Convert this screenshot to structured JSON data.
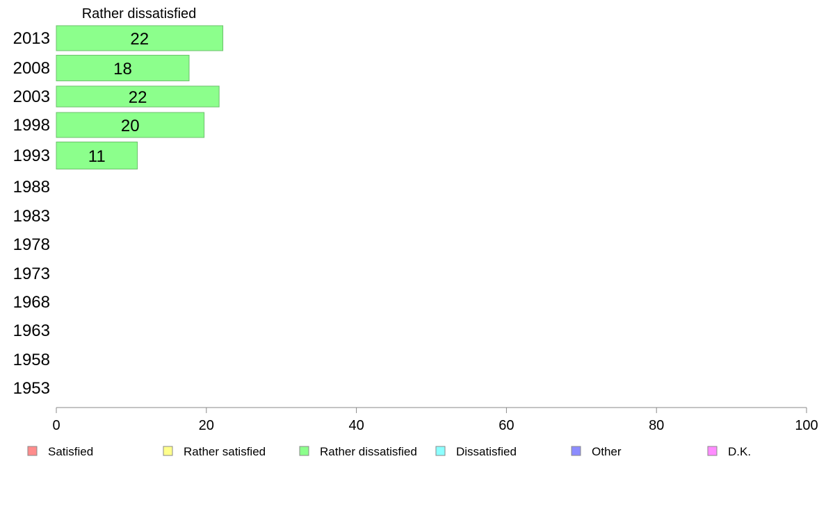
{
  "chart_data": {
    "type": "bar",
    "orientation": "horizontal",
    "title": "Rather dissatisfied",
    "categories": [
      "2013",
      "2008",
      "2003",
      "1998",
      "1993",
      "1988",
      "1983",
      "1978",
      "1973",
      "1968",
      "1963",
      "1958",
      "1953"
    ],
    "series": [
      {
        "name": "Rather dissatisfied",
        "color": "#8cff8c",
        "values": [
          22.2,
          17.7,
          21.7,
          19.7,
          10.8,
          null,
          null,
          null,
          null,
          null,
          null,
          null,
          null
        ],
        "labels": [
          "22",
          "18",
          "22",
          "20",
          "11",
          "",
          "",
          "",
          "",
          "",
          "",
          "",
          ""
        ]
      }
    ],
    "xlim": [
      0,
      100
    ],
    "xticks": [
      0,
      20,
      40,
      60,
      80,
      100
    ],
    "grid": false,
    "legend": {
      "position": "bottom",
      "items": [
        {
          "label": "Satisfied",
          "color": "#ff8c8c"
        },
        {
          "label": "Rather satisfied",
          "color": "#ffff8c"
        },
        {
          "label": "Rather dissatisfied",
          "color": "#8cff8c"
        },
        {
          "label": "Dissatisfied",
          "color": "#8cffff"
        },
        {
          "label": "Other",
          "color": "#8c8cff"
        },
        {
          "label": "D.K.",
          "color": "#ff8cff"
        }
      ]
    }
  }
}
